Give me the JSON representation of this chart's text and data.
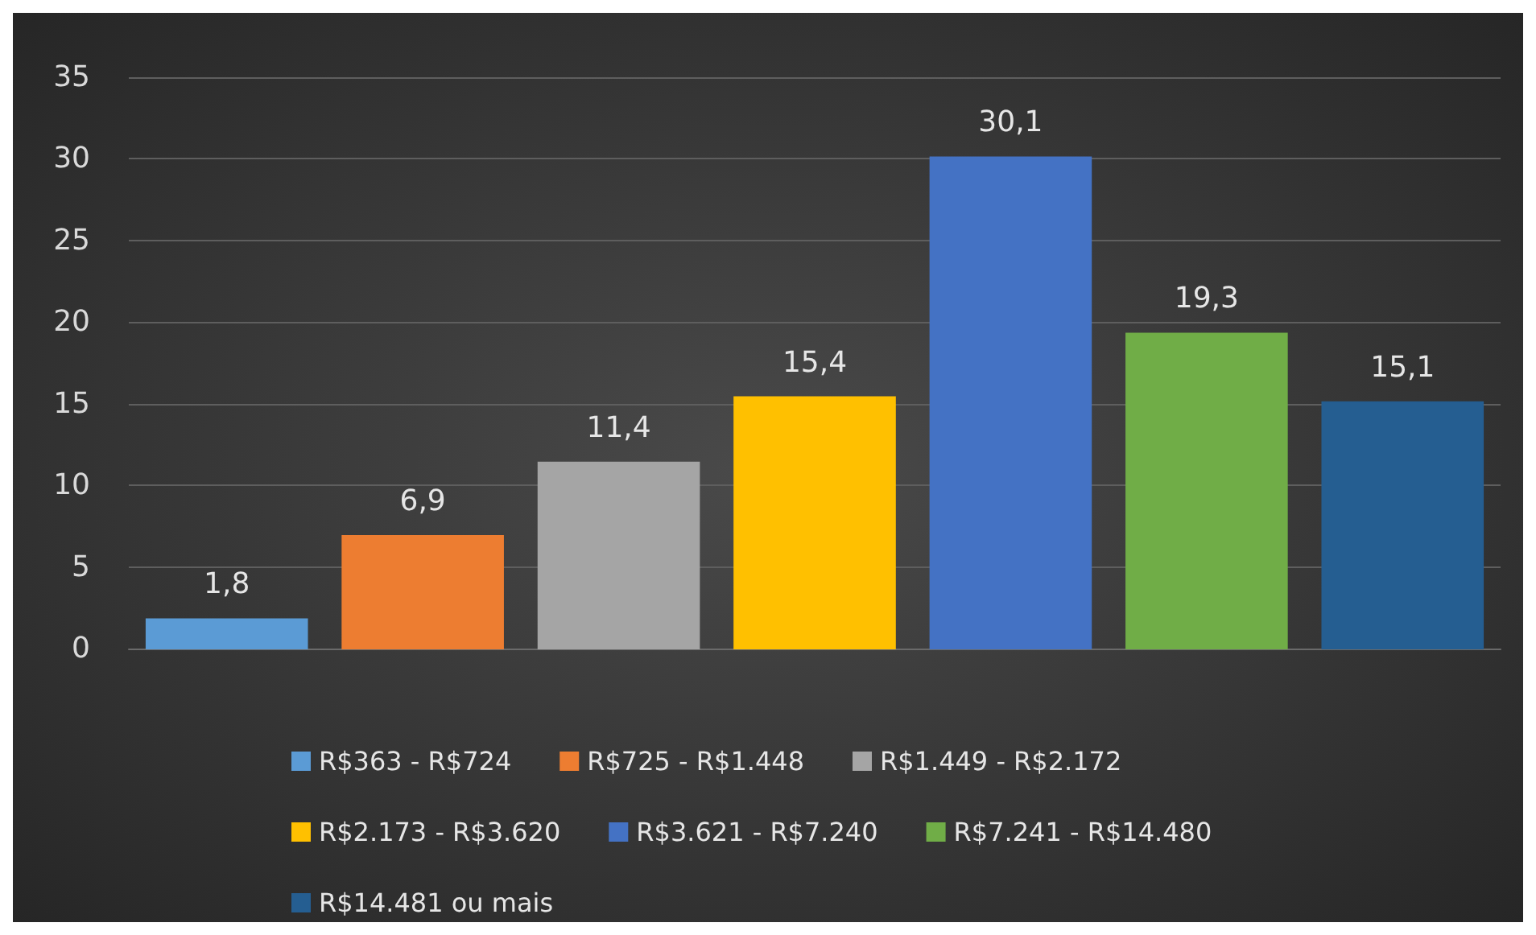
{
  "chart_data": {
    "type": "bar",
    "categories": [
      null,
      null,
      null,
      null,
      null,
      null,
      null
    ],
    "series": [
      {
        "name": "R$363 - R$724",
        "color": "#5b9bd5",
        "values": [
          1.8,
          null,
          null,
          null,
          null,
          null,
          null
        ],
        "value_labels": [
          "1,8",
          null,
          null,
          null,
          null,
          null,
          null
        ]
      },
      {
        "name": "R$725 - R$1.448",
        "color": "#ed7d31",
        "values": [
          null,
          6.9,
          null,
          null,
          null,
          null,
          null
        ],
        "value_labels": [
          null,
          "6,9",
          null,
          null,
          null,
          null,
          null
        ]
      },
      {
        "name": "R$1.449 - R$2.172",
        "color": "#a5a5a5",
        "values": [
          null,
          null,
          11.4,
          null,
          null,
          null,
          null
        ],
        "value_labels": [
          null,
          null,
          "11,4",
          null,
          null,
          null,
          null
        ]
      },
      {
        "name": "R$2.173 - R$3.620",
        "color": "#ffc000",
        "values": [
          null,
          null,
          null,
          15.4,
          null,
          null,
          null
        ],
        "value_labels": [
          null,
          null,
          null,
          "15,4",
          null,
          null,
          null
        ]
      },
      {
        "name": "R$3.621 - R$7.240",
        "color": "#4472c4",
        "values": [
          null,
          null,
          null,
          null,
          30.1,
          null,
          null
        ],
        "value_labels": [
          null,
          null,
          null,
          null,
          "30,1",
          null,
          null
        ]
      },
      {
        "name": "R$7.241 - R$14.480",
        "color": "#70ad47",
        "values": [
          null,
          null,
          null,
          null,
          null,
          19.3,
          null
        ],
        "value_labels": [
          null,
          null,
          null,
          null,
          null,
          "19,3",
          null
        ]
      },
      {
        "name": "R$14.481 ou mais",
        "color": "#255e91",
        "values": [
          null,
          null,
          null,
          null,
          null,
          null,
          15.1
        ],
        "value_labels": [
          null,
          null,
          null,
          null,
          null,
          null,
          "15,1"
        ]
      }
    ],
    "ylim": [
      0,
      35
    ],
    "yticks": [
      0,
      5,
      10,
      15,
      20,
      25,
      30,
      35
    ],
    "grid": "y",
    "legend": "bottom"
  }
}
